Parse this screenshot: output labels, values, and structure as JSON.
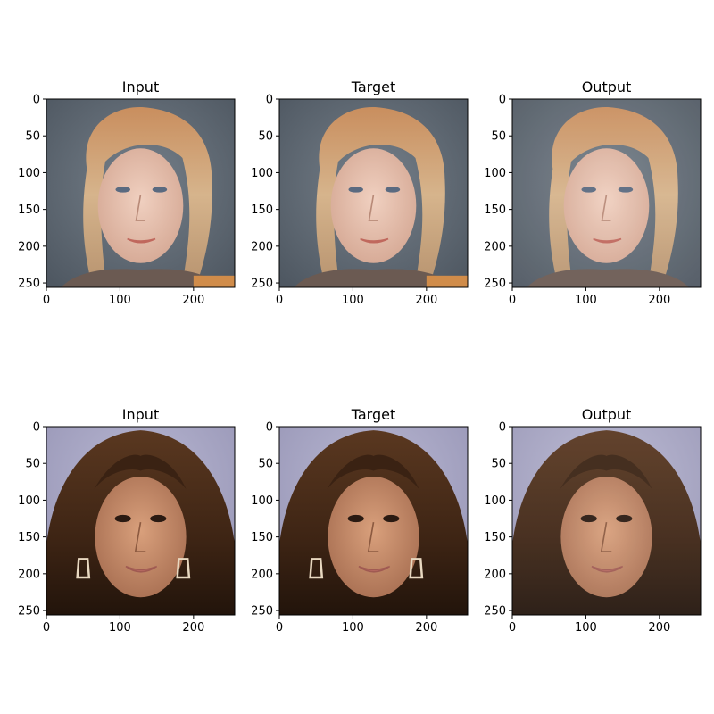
{
  "figure": {
    "panels": [
      {
        "title": "Input",
        "row": 0,
        "col": 0,
        "variant": "input",
        "subject": "older-blonde-woman"
      },
      {
        "title": "Target",
        "row": 0,
        "col": 1,
        "variant": "target",
        "subject": "older-blonde-woman"
      },
      {
        "title": "Output",
        "row": 0,
        "col": 2,
        "variant": "output",
        "subject": "older-blonde-woman"
      },
      {
        "title": "Input",
        "row": 1,
        "col": 0,
        "variant": "input",
        "subject": "brunette-woman-earrings"
      },
      {
        "title": "Target",
        "row": 1,
        "col": 1,
        "variant": "target",
        "subject": "brunette-woman-earrings"
      },
      {
        "title": "Output",
        "row": 1,
        "col": 2,
        "variant": "output",
        "subject": "brunette-woman-earrings"
      }
    ],
    "x_ticks": [
      "0",
      "100",
      "200"
    ],
    "y_ticks": [
      "0",
      "50",
      "100",
      "150",
      "200",
      "250"
    ],
    "image_extent": 256,
    "colors": {
      "bg_gray": "#5d666f",
      "bg_lavender": "#a9a8c6",
      "blonde_hair": "#c8a27a",
      "brunette_hair": "#4a2c1a",
      "skin_light": "#e8c3b3",
      "skin_tan": "#c48a6a"
    }
  }
}
